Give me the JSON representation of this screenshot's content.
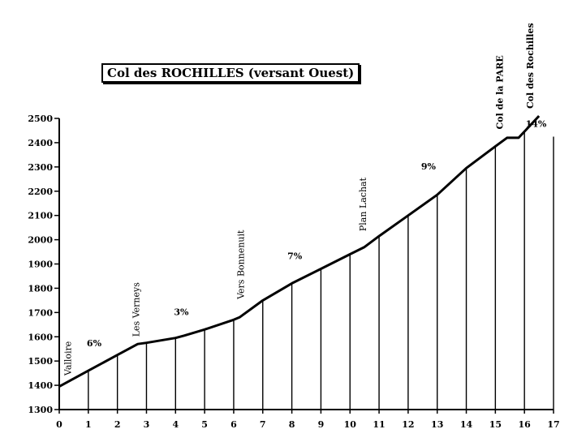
{
  "chart_data": {
    "type": "line",
    "title": "Col des ROCHILLES (versant Ouest)",
    "xlabel": "",
    "ylabel": "",
    "xlim": [
      0,
      17
    ],
    "ylim": [
      1300,
      2500
    ],
    "grid": false,
    "x_ticks": [
      "0",
      "1",
      "2",
      "3",
      "4",
      "5",
      "6",
      "7",
      "8",
      "9",
      "10",
      "11",
      "12",
      "13",
      "14",
      "15",
      "16",
      "17"
    ],
    "y_ticks": [
      "1300",
      "1400",
      "1500",
      "1600",
      "1700",
      "1800",
      "1900",
      "2000",
      "2100",
      "2200",
      "2300",
      "2400",
      "2500"
    ],
    "series": [
      {
        "x": [
          0,
          1,
          2,
          2.7,
          3,
          4,
          4.3,
          5,
          6,
          6.2,
          7,
          8,
          9,
          10,
          10.5,
          11,
          12,
          13,
          14,
          15,
          15.4,
          15.8,
          16.5
        ],
        "y": [
          1395,
          1460,
          1525,
          1570,
          1575,
          1595,
          1605,
          1630,
          1670,
          1680,
          1750,
          1820,
          1880,
          1940,
          1970,
          2015,
          2100,
          2185,
          2295,
          2385,
          2420,
          2420,
          2510
        ]
      }
    ],
    "drop_lines_x": [
      1,
      2,
      3,
      4,
      5,
      6,
      7,
      8,
      9,
      10,
      11,
      12,
      13,
      14,
      15,
      16,
      17
    ],
    "annotations": [
      {
        "text": "Valloire",
        "x": 0.4,
        "y": 1440,
        "style": "place"
      },
      {
        "text": "Les Verneys",
        "x": 2.75,
        "y": 1600,
        "style": "place"
      },
      {
        "text": "Vers Bonnenuit",
        "x": 6.35,
        "y": 1755,
        "style": "place"
      },
      {
        "text": "Plan Lachat",
        "x": 10.55,
        "y": 2035,
        "style": "place"
      },
      {
        "text": "Col de  la PARE",
        "x": 15.25,
        "y": 2455,
        "style": "place-bold"
      },
      {
        "text": "Col des Rochilles",
        "x": 16.3,
        "y": 2540,
        "style": "place-bold"
      },
      {
        "text": "6%",
        "x": 1.2,
        "y": 1560,
        "style": "grade"
      },
      {
        "text": "3%",
        "x": 4.2,
        "y": 1690,
        "style": "grade"
      },
      {
        "text": "7%",
        "x": 8.1,
        "y": 1920,
        "style": "grade"
      },
      {
        "text": "9%",
        "x": 12.7,
        "y": 2290,
        "style": "grade"
      },
      {
        "text": "14%",
        "x": 16.4,
        "y": 2465,
        "style": "grade"
      }
    ]
  }
}
